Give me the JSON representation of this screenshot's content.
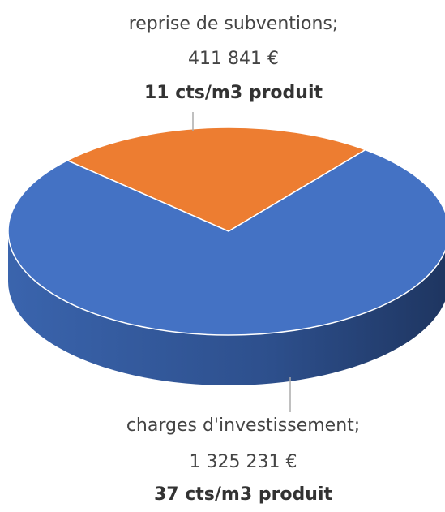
{
  "chart_data": {
    "type": "pie",
    "categories": [
      "reprise de subventions;",
      "charges d'investissement;"
    ],
    "values": [
      411841,
      1325231
    ],
    "value_labels": [
      "411 841 €",
      "1 325 231 €"
    ],
    "unit_labels": [
      "11 cts/m3 produit",
      "37 cts/m3 produit"
    ],
    "colors": [
      "#ed7d31",
      "#4472c4"
    ]
  }
}
